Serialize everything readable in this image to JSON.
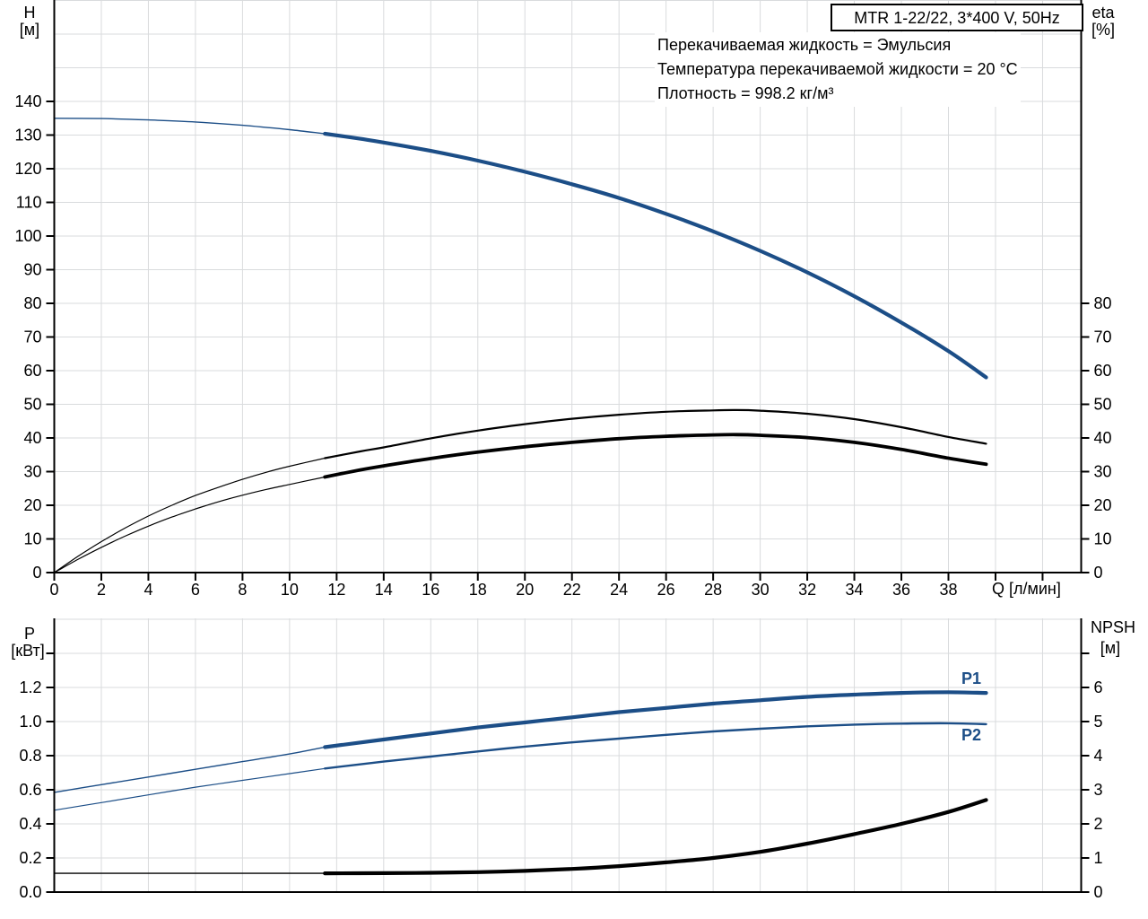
{
  "title_box": {
    "text": "MTR 1-22/22, 3*400 V, 50Hz"
  },
  "annotations": {
    "line1": "Перекачиваемая жидкость = Эмульсия",
    "line2": "Температура перекачиваемой жидкости = 20 °C",
    "line3": "Плотность = 998.2 кг/м³"
  },
  "labels": {
    "top_left_axis": "H",
    "top_left_unit": "[м]",
    "top_right_axis": "eta",
    "top_right_unit": "[%]",
    "x_axis": "Q [л/мин]",
    "bottom_left_axis": "P",
    "bottom_left_unit": "[кВт]",
    "bottom_right_axis": "NPSH",
    "bottom_right_unit": "[м]",
    "p1": "P1",
    "p2": "P2"
  },
  "colors": {
    "curve_blue": "#1c4e87",
    "curve_black": "#000000",
    "grid": "#d9dbdd",
    "axis": "#000000"
  },
  "chart_data": [
    {
      "type": "line",
      "title": "MTR 1-22/22, 3*400 V, 50Hz",
      "xlabel": "Q [л/мин]",
      "ylabel_left": "H [м]",
      "ylabel_right": "eta [%]",
      "x_range": [
        0,
        43.6
      ],
      "x_grid_step": 2,
      "x_grid_max": 42,
      "y_left_range": [
        0,
        170
      ],
      "y_right_range": [
        0,
        170
      ],
      "y_grid_step": 10,
      "y_grid_max": 170,
      "grid": true,
      "x_ticks": [
        "0",
        "2",
        "4",
        "6",
        "8",
        "10",
        "12",
        "14",
        "16",
        "18",
        "20",
        "22",
        "24",
        "26",
        "28",
        "30",
        "32",
        "34",
        "36",
        "38"
      ],
      "y_left_ticks": [
        "0",
        "10",
        "20",
        "30",
        "40",
        "50",
        "60",
        "70",
        "80",
        "90",
        "100",
        "110",
        "120",
        "130",
        "140"
      ],
      "y_right_ticks": [
        "0",
        "10",
        "20",
        "30",
        "40",
        "50",
        "60",
        "70",
        "80"
      ],
      "y_left_extra_ticks": [],
      "y_right_extra_ticks": [],
      "series": [
        {
          "name": "H",
          "axis": "left",
          "color": "blue",
          "segments": [
            {
              "width": 1.4,
              "points": [
                [
                  0,
                  135
                ],
                [
                  2,
                  134.9
                ],
                [
                  4,
                  134.5
                ],
                [
                  6,
                  133.9
                ],
                [
                  8,
                  132.9
                ],
                [
                  10,
                  131.6
                ],
                [
                  11.5,
                  130.4
                ]
              ]
            },
            {
              "width": 4.2,
              "points": [
                [
                  11.5,
                  130.4
                ],
                [
                  13,
                  128.9
                ],
                [
                  14,
                  127.8
                ],
                [
                  16,
                  125.3
                ],
                [
                  18,
                  122.4
                ],
                [
                  20,
                  119.1
                ],
                [
                  22,
                  115.4
                ],
                [
                  24,
                  111.3
                ],
                [
                  26,
                  106.6
                ],
                [
                  28,
                  101.4
                ],
                [
                  30,
                  95.6
                ],
                [
                  32,
                  89.2
                ],
                [
                  34,
                  82.1
                ],
                [
                  36,
                  74.3
                ],
                [
                  38,
                  65.8
                ],
                [
                  39.6,
                  58
                ]
              ]
            }
          ]
        },
        {
          "name": "eta-pump",
          "axis": "right",
          "color": "black",
          "segments": [
            {
              "width": 1.2,
              "points": [
                [
                  0,
                  0
                ],
                [
                  1,
                  4.8
                ],
                [
                  2,
                  9.2
                ],
                [
                  3,
                  13.2
                ],
                [
                  4,
                  16.8
                ],
                [
                  5,
                  20
                ],
                [
                  6,
                  22.9
                ],
                [
                  7,
                  25.4
                ],
                [
                  8,
                  27.7
                ],
                [
                  9,
                  29.8
                ],
                [
                  10,
                  31.6
                ],
                [
                  11.5,
                  34
                ]
              ]
            },
            {
              "width": 2.2,
              "points": [
                [
                  11.5,
                  34
                ],
                [
                  13,
                  36
                ],
                [
                  14,
                  37.2
                ],
                [
                  16,
                  39.9
                ],
                [
                  18,
                  42.2
                ],
                [
                  20,
                  44.1
                ],
                [
                  22,
                  45.7
                ],
                [
                  24,
                  46.9
                ],
                [
                  26,
                  47.8
                ],
                [
                  28,
                  48.2
                ],
                [
                  29,
                  48.3
                ],
                [
                  30,
                  48.1
                ],
                [
                  32,
                  47.2
                ],
                [
                  34,
                  45.6
                ],
                [
                  36,
                  43.2
                ],
                [
                  38,
                  40.3
                ],
                [
                  39.6,
                  38.3
                ]
              ]
            }
          ]
        },
        {
          "name": "eta-unit",
          "axis": "right",
          "color": "black",
          "segments": [
            {
              "width": 1.2,
              "points": [
                [
                  0,
                  0
                ],
                [
                  1,
                  3.9
                ],
                [
                  2,
                  7.5
                ],
                [
                  3,
                  10.8
                ],
                [
                  4,
                  13.8
                ],
                [
                  5,
                  16.5
                ],
                [
                  6,
                  18.9
                ],
                [
                  7,
                  21.1
                ],
                [
                  8,
                  23
                ],
                [
                  9,
                  24.7
                ],
                [
                  10,
                  26.2
                ],
                [
                  11.5,
                  28.4
                ]
              ]
            },
            {
              "width": 3.8,
              "points": [
                [
                  11.5,
                  28.4
                ],
                [
                  13,
                  30.5
                ],
                [
                  14,
                  31.7
                ],
                [
                  16,
                  33.9
                ],
                [
                  18,
                  35.8
                ],
                [
                  20,
                  37.4
                ],
                [
                  22,
                  38.7
                ],
                [
                  24,
                  39.8
                ],
                [
                  26,
                  40.5
                ],
                [
                  28,
                  40.9
                ],
                [
                  29,
                  41
                ],
                [
                  30,
                  40.8
                ],
                [
                  32,
                  40.1
                ],
                [
                  34,
                  38.7
                ],
                [
                  36,
                  36.6
                ],
                [
                  38,
                  34
                ],
                [
                  39.6,
                  32.2
                ]
              ]
            }
          ]
        }
      ]
    },
    {
      "type": "line",
      "title": "",
      "xlabel": "",
      "ylabel_left": "P [кВт]",
      "ylabel_right": "NPSH [м]",
      "x_range": [
        0,
        43.6
      ],
      "x_grid_step": 2,
      "x_grid_max": 42,
      "y_left_range": [
        0,
        1.6
      ],
      "y_right_range": [
        0,
        8
      ],
      "y_grid_step": 0.2,
      "y_grid_max": 1.6,
      "grid": true,
      "x_ticks": [],
      "y_left_ticks": [
        "0.0",
        "0.2",
        "0.4",
        "0.6",
        "0.8",
        "1.0",
        "1.2"
      ],
      "y_right_ticks": [
        "0",
        "1",
        "2",
        "3",
        "4",
        "5",
        "6"
      ],
      "y_left_extra_ticks": [
        1.4
      ],
      "y_right_extra_ticks": [
        7
      ],
      "series": [
        {
          "name": "P1",
          "axis": "left",
          "color": "blue",
          "segments": [
            {
              "width": 1.4,
              "points": [
                [
                  0,
                  0.585
                ],
                [
                  2,
                  0.63
                ],
                [
                  4,
                  0.675
                ],
                [
                  6,
                  0.72
                ],
                [
                  8,
                  0.765
                ],
                [
                  10,
                  0.81
                ],
                [
                  11.5,
                  0.85
                ]
              ]
            },
            {
              "width": 4.2,
              "points": [
                [
                  11.5,
                  0.85
                ],
                [
                  14,
                  0.895
                ],
                [
                  16,
                  0.93
                ],
                [
                  18,
                  0.965
                ],
                [
                  20,
                  0.995
                ],
                [
                  22,
                  1.025
                ],
                [
                  24,
                  1.055
                ],
                [
                  26,
                  1.08
                ],
                [
                  28,
                  1.105
                ],
                [
                  30,
                  1.125
                ],
                [
                  32,
                  1.145
                ],
                [
                  34,
                  1.158
                ],
                [
                  36,
                  1.168
                ],
                [
                  38,
                  1.172
                ],
                [
                  39.6,
                  1.168
                ]
              ]
            }
          ]
        },
        {
          "name": "P2",
          "axis": "left",
          "color": "blue",
          "segments": [
            {
              "width": 1.2,
              "points": [
                [
                  0,
                  0.48
                ],
                [
                  2,
                  0.525
                ],
                [
                  4,
                  0.57
                ],
                [
                  6,
                  0.615
                ],
                [
                  8,
                  0.655
                ],
                [
                  10,
                  0.695
                ],
                [
                  11.5,
                  0.725
                ]
              ]
            },
            {
              "width": 2.4,
              "points": [
                [
                  11.5,
                  0.725
                ],
                [
                  14,
                  0.765
                ],
                [
                  16,
                  0.795
                ],
                [
                  18,
                  0.825
                ],
                [
                  20,
                  0.853
                ],
                [
                  22,
                  0.878
                ],
                [
                  24,
                  0.9
                ],
                [
                  26,
                  0.922
                ],
                [
                  28,
                  0.942
                ],
                [
                  30,
                  0.958
                ],
                [
                  32,
                  0.972
                ],
                [
                  34,
                  0.982
                ],
                [
                  36,
                  0.988
                ],
                [
                  38,
                  0.99
                ],
                [
                  39.6,
                  0.985
                ]
              ]
            }
          ]
        },
        {
          "name": "NPSH",
          "axis": "right",
          "color": "black",
          "segments": [
            {
              "width": 1.4,
              "points": [
                [
                  0,
                  0.55
                ],
                [
                  4,
                  0.55
                ],
                [
                  8,
                  0.55
                ],
                [
                  11.5,
                  0.55
                ]
              ]
            },
            {
              "width": 4.2,
              "points": [
                [
                  11.5,
                  0.55
                ],
                [
                  14,
                  0.555
                ],
                [
                  16,
                  0.565
                ],
                [
                  18,
                  0.585
                ],
                [
                  20,
                  0.62
                ],
                [
                  22,
                  0.68
                ],
                [
                  24,
                  0.76
                ],
                [
                  26,
                  0.87
                ],
                [
                  28,
                  1.0
                ],
                [
                  30,
                  1.18
                ],
                [
                  32,
                  1.42
                ],
                [
                  34,
                  1.7
                ],
                [
                  36,
                  2.0
                ],
                [
                  38,
                  2.35
                ],
                [
                  39.6,
                  2.7
                ]
              ]
            }
          ]
        }
      ]
    }
  ]
}
